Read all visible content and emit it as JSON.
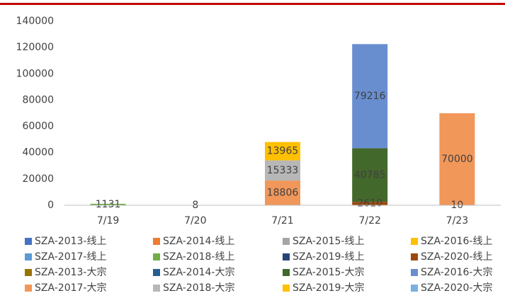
{
  "chart_data": {
    "type": "stacked-bar",
    "categories": [
      "7/19",
      "7/20",
      "7/21",
      "7/22",
      "7/23"
    ],
    "series": [
      {
        "name": "SZA-2013-线上",
        "color": "#4472c4",
        "values": [
          null,
          null,
          null,
          null,
          null
        ]
      },
      {
        "name": "SZA-2014-线上",
        "color": "#ed7d31",
        "values": [
          null,
          null,
          null,
          null,
          null
        ]
      },
      {
        "name": "SZA-2015-线上",
        "color": "#a5a5a5",
        "values": [
          null,
          null,
          null,
          null,
          null
        ]
      },
      {
        "name": "SZA-2016-线上",
        "color": "#ffc000",
        "values": [
          null,
          null,
          null,
          null,
          null
        ]
      },
      {
        "name": "SZA-2017-线上",
        "color": "#5b9bd5",
        "values": [
          null,
          null,
          null,
          null,
          null
        ]
      },
      {
        "name": "SZA-2018-线上",
        "color": "#70ad47",
        "values": [
          1131,
          null,
          null,
          null,
          null
        ]
      },
      {
        "name": "SZA-2019-线上",
        "color": "#264478",
        "values": [
          null,
          null,
          null,
          null,
          null
        ]
      },
      {
        "name": "SZA-2020-线上",
        "color": "#9e480e",
        "values": [
          null,
          null,
          null,
          2610,
          null
        ]
      },
      {
        "name": "SZA-2013-大宗",
        "color": "#997300",
        "values": [
          null,
          null,
          null,
          null,
          null
        ]
      },
      {
        "name": "SZA-2014-大宗",
        "color": "#255e91",
        "values": [
          null,
          null,
          null,
          null,
          null
        ]
      },
      {
        "name": "SZA-2015-大宗",
        "color": "#43682b",
        "values": [
          null,
          8,
          null,
          40785,
          10
        ]
      },
      {
        "name": "SZA-2016-大宗",
        "color": "#698ed0",
        "values": [
          null,
          null,
          null,
          79216,
          null
        ]
      },
      {
        "name": "SZA-2017-大宗",
        "color": "#f1975a",
        "values": [
          null,
          null,
          18806,
          null,
          70000
        ]
      },
      {
        "name": "SZA-2018-大宗",
        "color": "#b7b7b7",
        "values": [
          null,
          null,
          15333,
          null,
          null
        ]
      },
      {
        "name": "SZA-2019-大宗",
        "color": "#ffc000",
        "values": [
          null,
          null,
          13965,
          null,
          null
        ]
      },
      {
        "name": "SZA-2020-大宗",
        "color": "#7cafdd",
        "values": [
          null,
          null,
          null,
          null,
          null
        ]
      }
    ],
    "ylim": [
      0,
      140000
    ],
    "yticks": [
      0,
      20000,
      40000,
      60000,
      80000,
      100000,
      120000,
      140000
    ],
    "grid": false
  }
}
